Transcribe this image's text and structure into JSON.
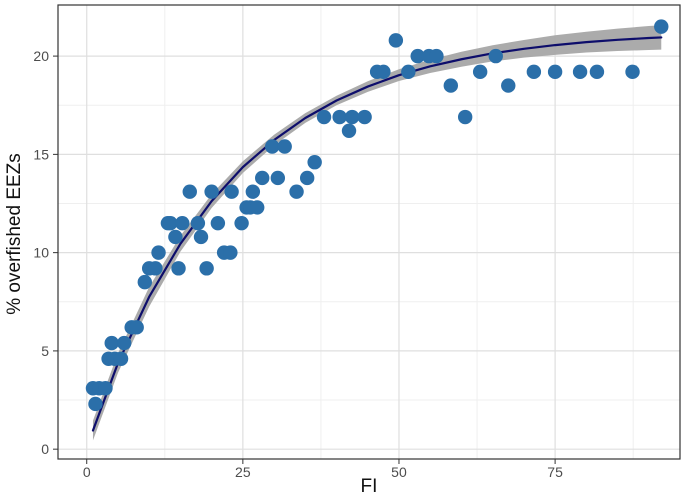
{
  "chart_data": {
    "type": "scatter",
    "title": "",
    "xlabel": "FI",
    "ylabel": "% overfished EEZs",
    "xlim": [
      -4.6,
      95
    ],
    "ylim": [
      -0.5,
      22.6
    ],
    "xticks": [
      0,
      25,
      50,
      75
    ],
    "yticks": [
      0,
      5,
      10,
      15,
      20
    ],
    "x_tick_labels": [
      "0",
      "25",
      "50",
      "75"
    ],
    "y_tick_labels": [
      "0",
      "5",
      "10",
      "15",
      "20"
    ],
    "grid": true,
    "legend": "none",
    "series": [
      {
        "x": [
          1,
          1.4,
          2,
          3,
          3.5,
          4,
          4.5,
          5.5,
          6,
          7.2,
          8,
          9.3,
          10,
          11,
          11.5,
          13,
          13.4,
          14.2,
          14.7,
          15.3,
          16.5,
          17.8,
          18.3,
          19.2,
          20,
          21,
          22,
          23,
          23.2,
          24.8,
          25.6,
          26.2,
          26.6,
          27.3,
          28.1,
          29.7,
          30.6,
          31.7,
          33.6,
          35.3,
          36.5,
          38,
          40.5,
          42,
          42.5,
          44.5,
          46.5,
          47.5,
          49.5,
          51.5,
          53,
          54.8,
          56,
          58.3,
          60.6,
          63,
          65.5,
          67.5,
          71.6,
          75,
          79,
          81.7,
          87.4,
          92
        ],
        "y": [
          3.1,
          2.3,
          3.1,
          3.1,
          4.6,
          5.4,
          4.6,
          4.6,
          5.4,
          6.2,
          6.2,
          8.5,
          9.2,
          9.2,
          10,
          11.5,
          11.5,
          10.8,
          9.2,
          11.5,
          13.1,
          11.5,
          10.8,
          9.2,
          13.1,
          11.5,
          10,
          10,
          13.1,
          11.5,
          12.3,
          12.3,
          13.1,
          12.3,
          13.8,
          15.4,
          13.8,
          15.4,
          13.1,
          13.8,
          14.6,
          16.9,
          16.9,
          16.2,
          16.9,
          16.9,
          19.2,
          19.2,
          20.8,
          19.2,
          20,
          20,
          20,
          18.5,
          16.9,
          19.2,
          20,
          18.5,
          19.2,
          19.2,
          19.2,
          19.2,
          19.2,
          21.5
        ],
        "color": "#2b6fa9"
      }
    ],
    "fit": {
      "type": "line",
      "x": [
        1,
        5,
        10,
        15,
        20,
        25,
        30,
        35,
        40,
        45,
        50,
        55,
        60,
        65,
        70,
        75,
        80,
        85,
        90,
        92
      ],
      "y": [
        0.95,
        4.38,
        7.75,
        10.45,
        12.62,
        14.35,
        15.73,
        16.85,
        17.74,
        18.45,
        19.03,
        19.48,
        19.84,
        20.14,
        20.37,
        20.56,
        20.71,
        20.83,
        20.92,
        20.95
      ],
      "band_upper": [
        1.45,
        4.88,
        8.25,
        10.85,
        12.97,
        14.65,
        16.0,
        17.1,
        17.98,
        18.72,
        19.33,
        19.82,
        20.22,
        20.55,
        20.82,
        21.06,
        21.24,
        21.4,
        21.53,
        21.57
      ],
      "band_lower": [
        0.45,
        3.88,
        7.25,
        10.05,
        12.27,
        14.05,
        15.46,
        16.6,
        17.5,
        18.18,
        18.73,
        19.14,
        19.46,
        19.73,
        19.92,
        20.06,
        20.18,
        20.26,
        20.31,
        20.33
      ],
      "line_color": "#0d0d6b",
      "band_color": "#a6a6a6"
    },
    "colors": {
      "panel_border": "#333333",
      "grid_major": "#dfdfdf",
      "grid_minor": "#efefef",
      "tick_text": "#4d4d4d",
      "axis_title_text": "#111111"
    }
  }
}
